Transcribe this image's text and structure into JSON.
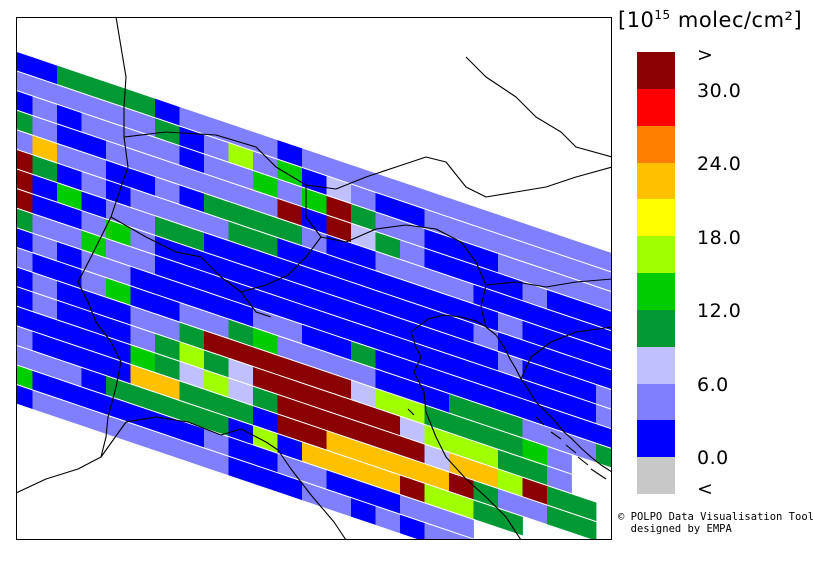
{
  "legend": {
    "unit_prefix": "[10",
    "unit_exp": "15",
    "unit_suffix": " molec/cm²]",
    "labels": [
      ">",
      "30.0",
      "24.0",
      "18.0",
      "12.0",
      "6.0",
      "0.0",
      "<"
    ],
    "colors": [
      "#8b0000",
      "#ff0000",
      "#ff7f00",
      "#ffc000",
      "#ffff00",
      "#a0ff00",
      "#00cc00",
      "#009933",
      "#c0c0ff",
      "#8080ff",
      "#0000ff",
      "#c8c8c8"
    ]
  },
  "credit": {
    "line1": "© POLPO Data Visualisation Tool",
    "line2": "  designed by EMPA"
  },
  "map": {
    "swath_rows": [
      "BBGGGGBLLLLBLLLLLLLLLLLLLLLLLLLLLLL",
      "LLLLLLGBLYLVBPLBBLLLLLLLLLLLLLLLLL",
      "BLBLLLLBLLVLVRGLLBBBLLLLLLLLLLLLL",
      "GLBBLLLLLLLRBRPGLBBBBLBBBLLLVB",
      "LOLLBBLBGGGGLBBLLLLBBBBBBVLVB",
      "RGBLBLLLLGGBBBBBBBBBLBBBBLBVV",
      "RBVBLLGGBBBBBBBBBBBLBBBBBBLVV",
      "RBBLVLBBBBBBBBBBBBBBLBBBLVLBB",
      "GLLVLLBBBBBBBBBBBBBBBBBBLBVBB",
      "BLBLLBBBBBLLBBGBBBBBBBBBBLBGBB",
      "LBBLVBBLLGVLLLLBBBGGGLLLGLL",
      "BLBBBLLGRRRRRRPYYGGGGVL",
      "BLBBBLGYGPRRRRRRPYYYGGL",
      "BBBBBVGPYPGRRRRRRPOOYRGG",
      "LBBBBOOGGGBRROOOOORGLLGG",
      "LLLBGGGGGBYBOOOORYYGG",
      "VBBBBBBBLBBLLBBBLLL",
      "BLLLLLLLLBBBLLBLBLLB"
    ]
  }
}
